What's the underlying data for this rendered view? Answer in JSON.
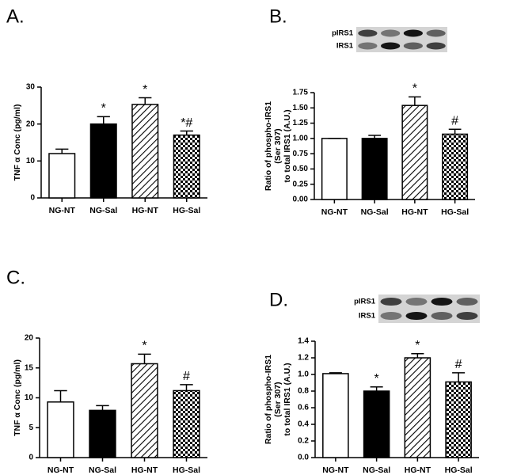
{
  "chart_data": [
    {
      "type": "bar",
      "panel": "A.",
      "ylabel": [
        "TNF α Conc (pg/ml)"
      ],
      "categories": [
        "NG-NT",
        "NG-Sal",
        "HG-NT",
        "HG-Sal"
      ],
      "values": [
        12,
        20,
        25.3,
        17
      ],
      "errors": [
        1.2,
        2,
        1.8,
        1.1
      ],
      "annotations": [
        null,
        "*",
        "*",
        "*#"
      ],
      "patterns": [
        "white",
        "black",
        "hatch",
        "checker"
      ],
      "ylim": [
        0,
        30
      ],
      "yticks": [
        0,
        10,
        20,
        30
      ]
    },
    {
      "type": "bar",
      "panel": "B.",
      "ylabel": [
        "Ratio of phospho-IRS1",
        "(Ser 307)",
        "to total IRS1 (A.U.)"
      ],
      "blot_labels": [
        "pIRS1",
        "IRS1"
      ],
      "categories": [
        "NG-NT",
        "NG-Sal",
        "HG-NT",
        "HG-Sal"
      ],
      "values": [
        1.0,
        1.0,
        1.54,
        1.07
      ],
      "errors": [
        0,
        0.05,
        0.14,
        0.08
      ],
      "annotations": [
        null,
        null,
        "*",
        "#"
      ],
      "patterns": [
        "white",
        "black",
        "hatch",
        "checker"
      ],
      "ylim": [
        0,
        1.75
      ],
      "yticks": [
        {
          "value": 0,
          "label": "0.00"
        },
        {
          "value": 0.25,
          "label": "0.25"
        },
        {
          "value": 0.5,
          "label": "0.50"
        },
        {
          "value": 0.75,
          "label": "0.75"
        },
        {
          "value": 1,
          "label": "1.00"
        },
        {
          "value": 1.25,
          "label": "1.25"
        },
        {
          "value": 1.5,
          "label": "1.50"
        },
        {
          "value": 1.75,
          "label": "1.75"
        }
      ]
    },
    {
      "type": "bar",
      "panel": "C.",
      "ylabel": [
        "TNF α Conc (pg/ml)"
      ],
      "categories": [
        "NG-NT",
        "NG-Sal",
        "HG-NT",
        "HG-Sal"
      ],
      "values": [
        9.3,
        7.9,
        15.7,
        11.2
      ],
      "errors": [
        1.9,
        0.8,
        1.6,
        1.0
      ],
      "annotations": [
        null,
        null,
        "*",
        "#"
      ],
      "patterns": [
        "white",
        "black",
        "hatch",
        "checker"
      ],
      "ylim": [
        0,
        20
      ],
      "yticks": [
        0,
        5,
        10,
        15,
        20
      ]
    },
    {
      "type": "bar",
      "panel": "D.",
      "ylabel": [
        "Ratio of phospho-IRS1",
        "(Ser 307)",
        "to total IRS1 (A.U.)"
      ],
      "blot_labels": [
        "pIRS1",
        "IRS1"
      ],
      "categories": [
        "NG-NT",
        "NG-Sal",
        "HG-NT",
        "HG-Sal"
      ],
      "values": [
        1.01,
        0.8,
        1.2,
        0.91
      ],
      "errors": [
        0.01,
        0.05,
        0.05,
        0.11
      ],
      "annotations": [
        null,
        "*",
        "*",
        "#"
      ],
      "patterns": [
        "white",
        "black",
        "hatch",
        "checker"
      ],
      "ylim": [
        0,
        1.4
      ],
      "yticks": [
        {
          "value": 0,
          "label": "0.0"
        },
        {
          "value": 0.2,
          "label": "0.2"
        },
        {
          "value": 0.4,
          "label": "0.4"
        },
        {
          "value": 0.6,
          "label": "0.6"
        },
        {
          "value": 0.8,
          "label": "0.8"
        },
        {
          "value": 1,
          "label": "1.0"
        },
        {
          "value": 1.2,
          "label": "1.2"
        },
        {
          "value": 1.4,
          "label": "1.4"
        }
      ]
    }
  ]
}
